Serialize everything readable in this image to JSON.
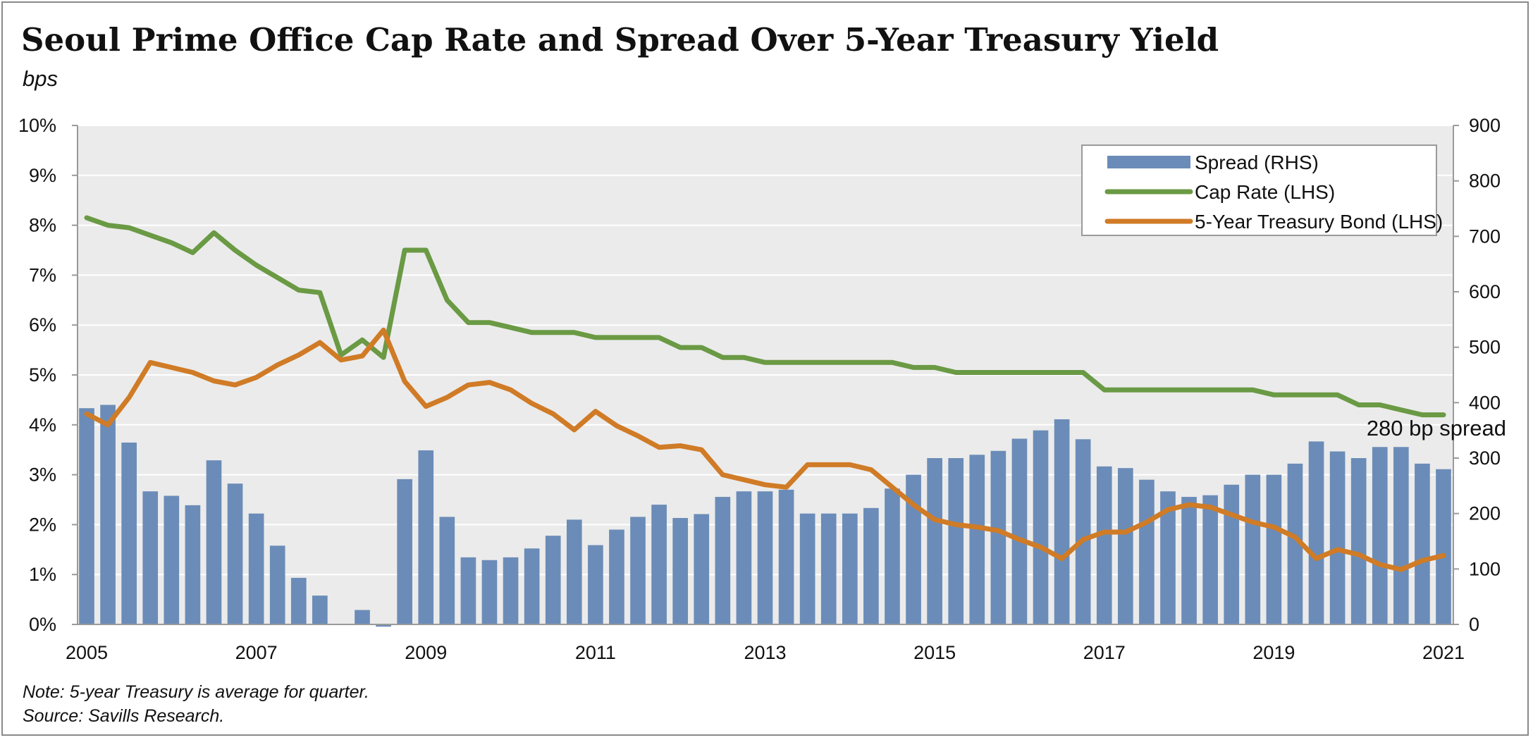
{
  "header": {
    "title": "Seoul Prime Office Cap Rate and Spread Over 5-Year Treasury Yield",
    "subtitle": "bps"
  },
  "footer": {
    "note": "Note: 5-year Treasury is average for quarter.",
    "source": "Source: Savills Research."
  },
  "colors": {
    "plot_background": "#ebebeb",
    "spread_bar": "#6b8cb8",
    "cap_rate_line": "#6a9a44",
    "treasury_line": "#d07b26",
    "gridline": "#ffffff"
  },
  "chart_data": {
    "type": "bar",
    "title": "Seoul Prime Office Cap Rate and Spread Over 5-Year Treasury Yield",
    "x_tick_labels": [
      "2005",
      "2007",
      "2009",
      "2011",
      "2013",
      "2015",
      "2017",
      "2019",
      "2021"
    ],
    "x_range": [
      2005.0,
      2021.0
    ],
    "left_axis": {
      "range": [
        0,
        10
      ],
      "ticks": [
        0,
        1,
        2,
        3,
        4,
        5,
        6,
        7,
        8,
        9,
        10
      ],
      "tick_labels": [
        "0%",
        "1%",
        "2%",
        "3%",
        "4%",
        "5%",
        "6%",
        "7%",
        "8%",
        "9%",
        "10%"
      ]
    },
    "right_axis": {
      "range": [
        0,
        900
      ],
      "ticks": [
        0,
        100,
        200,
        300,
        400,
        500,
        600,
        700,
        800,
        900
      ],
      "tick_labels": [
        "0",
        "100",
        "200",
        "300",
        "400",
        "500",
        "600",
        "700",
        "800",
        "900"
      ]
    },
    "grid": true,
    "legend_position": "top-right",
    "x": [
      2005.0,
      2005.25,
      2005.5,
      2005.75,
      2006.0,
      2006.25,
      2006.5,
      2006.75,
      2007.0,
      2007.25,
      2007.5,
      2007.75,
      2008.0,
      2008.25,
      2008.5,
      2008.75,
      2009.0,
      2009.25,
      2009.5,
      2009.75,
      2010.0,
      2010.25,
      2010.5,
      2010.75,
      2011.0,
      2011.25,
      2011.5,
      2011.75,
      2012.0,
      2012.25,
      2012.5,
      2012.75,
      2013.0,
      2013.25,
      2013.5,
      2013.75,
      2014.0,
      2014.25,
      2014.5,
      2014.75,
      2015.0,
      2015.25,
      2015.5,
      2015.75,
      2016.0,
      2016.25,
      2016.5,
      2016.75,
      2017.0,
      2017.25,
      2017.5,
      2017.75,
      2018.0,
      2018.25,
      2018.5,
      2018.75,
      2019.0,
      2019.25,
      2019.5,
      2019.75,
      2020.0,
      2020.25,
      2020.5,
      2020.75,
      2021.0
    ],
    "series": [
      {
        "name": "Spread (RHS)",
        "type": "bar",
        "axis": "right",
        "values": [
          390,
          396,
          328,
          240,
          232,
          215,
          296,
          254,
          200,
          142,
          84,
          52,
          0,
          26,
          -4,
          262,
          314,
          194,
          121,
          116,
          121,
          137,
          160,
          189,
          143,
          171,
          194,
          216,
          192,
          199,
          230,
          240,
          240,
          243,
          200,
          200,
          200,
          210,
          245,
          270,
          300,
          300,
          306,
          313,
          335,
          350,
          370,
          334,
          285,
          282,
          261,
          240,
          230,
          233,
          252,
          270,
          270,
          290,
          330,
          312,
          300,
          320,
          320,
          290,
          280
        ]
      },
      {
        "name": "Cap Rate (LHS)",
        "type": "line",
        "axis": "left",
        "values": [
          8.15,
          8.0,
          7.95,
          7.8,
          7.65,
          7.45,
          7.85,
          7.5,
          7.2,
          6.95,
          6.7,
          6.65,
          5.4,
          5.7,
          5.35,
          7.5,
          7.5,
          6.5,
          6.05,
          6.05,
          5.95,
          5.85,
          5.85,
          5.85,
          5.75,
          5.75,
          5.75,
          5.75,
          5.55,
          5.55,
          5.35,
          5.35,
          5.25,
          5.25,
          5.25,
          5.25,
          5.25,
          5.25,
          5.25,
          5.15,
          5.15,
          5.05,
          5.05,
          5.05,
          5.05,
          5.05,
          5.05,
          5.05,
          4.7,
          4.7,
          4.7,
          4.7,
          4.7,
          4.7,
          4.7,
          4.7,
          4.6,
          4.6,
          4.6,
          4.6,
          4.4,
          4.4,
          4.3,
          4.2,
          4.2
        ]
      },
      {
        "name": "5-Year Treasury Bond (LHS)",
        "type": "line",
        "axis": "left",
        "values": [
          4.22,
          4.0,
          4.55,
          5.25,
          5.15,
          5.05,
          4.88,
          4.8,
          4.95,
          5.2,
          5.4,
          5.65,
          5.3,
          5.38,
          5.9,
          4.87,
          4.37,
          4.55,
          4.8,
          4.85,
          4.7,
          4.43,
          4.22,
          3.9,
          4.27,
          3.98,
          3.78,
          3.55,
          3.58,
          3.5,
          3.0,
          2.9,
          2.8,
          2.75,
          3.2,
          3.2,
          3.2,
          3.1,
          2.75,
          2.4,
          2.1,
          2.0,
          1.95,
          1.88,
          1.7,
          1.55,
          1.32,
          1.7,
          1.85,
          1.85,
          2.05,
          2.3,
          2.4,
          2.35,
          2.2,
          2.05,
          1.95,
          1.75,
          1.32,
          1.5,
          1.4,
          1.2,
          1.1,
          1.28,
          1.38
        ]
      }
    ],
    "annotations": [
      {
        "text": "280 bp spread",
        "x": 2020.75,
        "y_right": 313
      }
    ]
  }
}
